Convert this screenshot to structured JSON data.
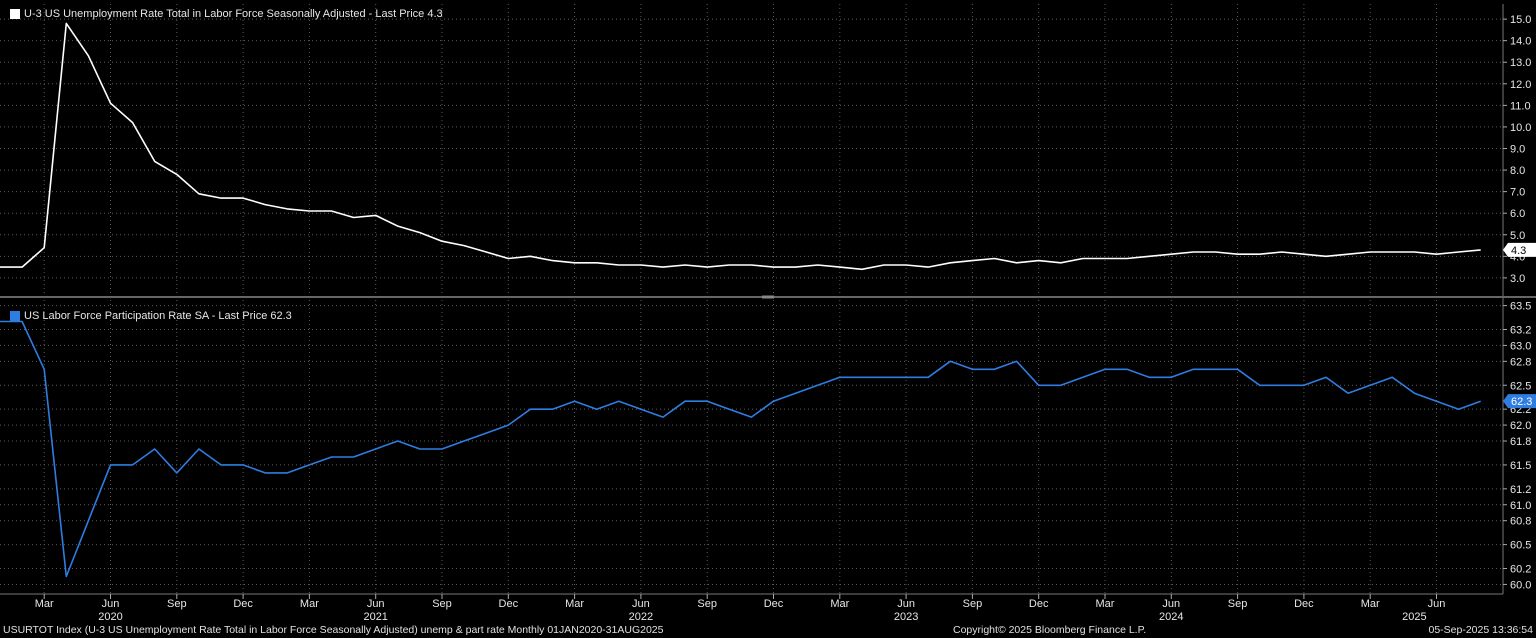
{
  "chart_data": [
    {
      "type": "line",
      "legend": "U-3 US Unemployment Rate Total in Labor Force Seasonally Adjusted - Last Price 4.3",
      "color": "#ffffff",
      "last_value": "4.3",
      "x": [
        "2020-01",
        "2020-02",
        "2020-03",
        "2020-04",
        "2020-05",
        "2020-06",
        "2020-07",
        "2020-08",
        "2020-09",
        "2020-10",
        "2020-11",
        "2020-12",
        "2021-01",
        "2021-02",
        "2021-03",
        "2021-04",
        "2021-05",
        "2021-06",
        "2021-07",
        "2021-08",
        "2021-09",
        "2021-10",
        "2021-11",
        "2021-12",
        "2022-01",
        "2022-02",
        "2022-03",
        "2022-04",
        "2022-05",
        "2022-06",
        "2022-07",
        "2022-08",
        "2022-09",
        "2022-10",
        "2022-11",
        "2022-12",
        "2023-01",
        "2023-02",
        "2023-03",
        "2023-04",
        "2023-05",
        "2023-06",
        "2023-07",
        "2023-08",
        "2023-09",
        "2023-10",
        "2023-11",
        "2023-12",
        "2024-01",
        "2024-02",
        "2024-03",
        "2024-04",
        "2024-05",
        "2024-06",
        "2024-07",
        "2024-08",
        "2024-09",
        "2024-10",
        "2024-11",
        "2024-12",
        "2025-01",
        "2025-02",
        "2025-03",
        "2025-04",
        "2025-05",
        "2025-06",
        "2025-07",
        "2025-08"
      ],
      "values": [
        3.5,
        3.5,
        4.4,
        14.8,
        13.3,
        11.1,
        10.2,
        8.4,
        7.8,
        6.9,
        6.7,
        6.7,
        6.4,
        6.2,
        6.1,
        6.1,
        5.8,
        5.9,
        5.4,
        5.1,
        4.7,
        4.5,
        4.2,
        3.9,
        4.0,
        3.8,
        3.7,
        3.7,
        3.6,
        3.6,
        3.5,
        3.6,
        3.5,
        3.6,
        3.6,
        3.5,
        3.5,
        3.6,
        3.5,
        3.4,
        3.6,
        3.6,
        3.5,
        3.7,
        3.8,
        3.9,
        3.7,
        3.8,
        3.7,
        3.9,
        3.9,
        3.9,
        4.0,
        4.1,
        4.2,
        4.2,
        4.1,
        4.1,
        4.2,
        4.1,
        4.0,
        4.1,
        4.2,
        4.2,
        4.2,
        4.1,
        4.2,
        4.3
      ],
      "ylim": [
        2.3,
        15.7
      ],
      "yticks": [
        "3.0",
        "4.0",
        "5.0",
        "6.0",
        "7.0",
        "8.0",
        "9.0",
        "10.0",
        "11.0",
        "12.0",
        "13.0",
        "14.0",
        "15.0"
      ],
      "grid": true
    },
    {
      "type": "line",
      "legend": "US Labor Force Participation Rate SA - Last Price 62.3",
      "color": "#2f7de1",
      "last_value": "62.3",
      "x": [
        "2020-01",
        "2020-02",
        "2020-03",
        "2020-04",
        "2020-05",
        "2020-06",
        "2020-07",
        "2020-08",
        "2020-09",
        "2020-10",
        "2020-11",
        "2020-12",
        "2021-01",
        "2021-02",
        "2021-03",
        "2021-04",
        "2021-05",
        "2021-06",
        "2021-07",
        "2021-08",
        "2021-09",
        "2021-10",
        "2021-11",
        "2021-12",
        "2022-01",
        "2022-02",
        "2022-03",
        "2022-04",
        "2022-05",
        "2022-06",
        "2022-07",
        "2022-08",
        "2022-09",
        "2022-10",
        "2022-11",
        "2022-12",
        "2023-01",
        "2023-02",
        "2023-03",
        "2023-04",
        "2023-05",
        "2023-06",
        "2023-07",
        "2023-08",
        "2023-09",
        "2023-10",
        "2023-11",
        "2023-12",
        "2024-01",
        "2024-02",
        "2024-03",
        "2024-04",
        "2024-05",
        "2024-06",
        "2024-07",
        "2024-08",
        "2024-09",
        "2024-10",
        "2024-11",
        "2024-12",
        "2025-01",
        "2025-02",
        "2025-03",
        "2025-04",
        "2025-05",
        "2025-06",
        "2025-07",
        "2025-08"
      ],
      "values": [
        63.3,
        63.3,
        62.7,
        60.1,
        60.8,
        61.5,
        61.5,
        61.7,
        61.4,
        61.7,
        61.5,
        61.5,
        61.4,
        61.4,
        61.5,
        61.6,
        61.6,
        61.7,
        61.8,
        61.7,
        61.7,
        61.8,
        61.9,
        62.0,
        62.2,
        62.2,
        62.3,
        62.2,
        62.3,
        62.2,
        62.1,
        62.3,
        62.3,
        62.2,
        62.1,
        62.3,
        62.4,
        62.5,
        62.6,
        62.6,
        62.6,
        62.6,
        62.6,
        62.8,
        62.7,
        62.7,
        62.8,
        62.5,
        62.5,
        62.6,
        62.7,
        62.7,
        62.6,
        62.6,
        62.7,
        62.7,
        62.7,
        62.5,
        62.5,
        62.5,
        62.6,
        62.4,
        62.5,
        62.6,
        62.4,
        62.3,
        62.2,
        62.3
      ],
      "ylim": [
        59.88,
        63.57
      ],
      "yticks": [
        "60.0",
        "60.2",
        "60.5",
        "60.8",
        "61.0",
        "61.2",
        "61.5",
        "61.8",
        "62.0",
        "62.2",
        "62.5",
        "62.8",
        "63.0",
        "63.2",
        "63.5"
      ],
      "grid": true
    }
  ],
  "xaxis": {
    "month_labels": [
      {
        "label": "Mar",
        "x": "2020-03"
      },
      {
        "label": "Jun",
        "x": "2020-06"
      },
      {
        "label": "Sep",
        "x": "2020-09"
      },
      {
        "label": "Dec",
        "x": "2020-12"
      },
      {
        "label": "Mar",
        "x": "2021-03"
      },
      {
        "label": "Jun",
        "x": "2021-06"
      },
      {
        "label": "Sep",
        "x": "2021-09"
      },
      {
        "label": "Dec",
        "x": "2021-12"
      },
      {
        "label": "Mar",
        "x": "2022-03"
      },
      {
        "label": "Jun",
        "x": "2022-06"
      },
      {
        "label": "Sep",
        "x": "2022-09"
      },
      {
        "label": "Dec",
        "x": "2022-12"
      },
      {
        "label": "Mar",
        "x": "2023-03"
      },
      {
        "label": "Jun",
        "x": "2023-06"
      },
      {
        "label": "Sep",
        "x": "2023-09"
      },
      {
        "label": "Dec",
        "x": "2023-12"
      },
      {
        "label": "Mar",
        "x": "2024-03"
      },
      {
        "label": "Jun",
        "x": "2024-06"
      },
      {
        "label": "Sep",
        "x": "2024-09"
      },
      {
        "label": "Dec",
        "x": "2024-12"
      },
      {
        "label": "Mar",
        "x": "2025-03"
      },
      {
        "label": "Jun",
        "x": "2025-06"
      }
    ],
    "year_labels": [
      {
        "label": "2020",
        "x": "2020-06"
      },
      {
        "label": "2021",
        "x": "2021-06"
      },
      {
        "label": "2022",
        "x": "2022-06"
      },
      {
        "label": "2023",
        "x": "2023-06"
      },
      {
        "label": "2024",
        "x": "2024-06"
      },
      {
        "label": "2025",
        "x": "2025-05"
      }
    ]
  },
  "footer": {
    "description": "USURTOT Index (U-3 US Unemployment Rate Total in Labor Force Seasonally Adjusted) unemp & part rate  Monthly 01JAN2020-31AUG2025",
    "copyright": "Copyright© 2025 Bloomberg Finance L.P.",
    "timestamp": "05-Sep-2025 13:36:54"
  },
  "colors": {
    "background": "#000000",
    "grid": "#5a5a5a",
    "axis_text": "#e6e6e6"
  }
}
